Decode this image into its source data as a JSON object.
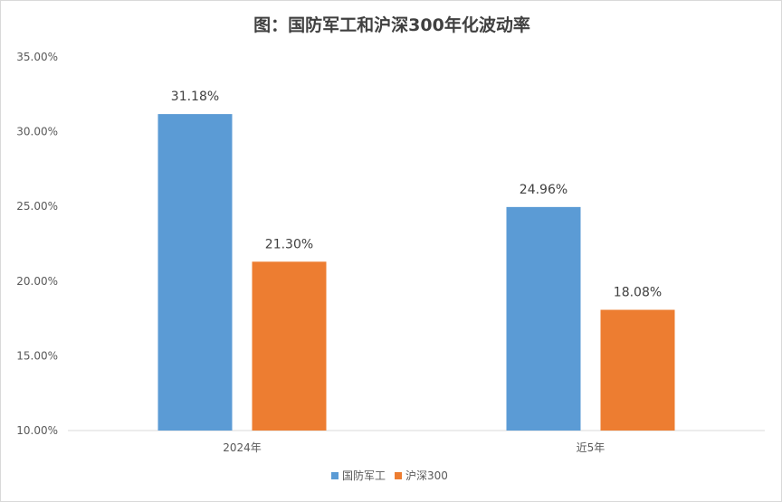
{
  "chart_data": {
    "type": "bar",
    "title": "图：国防军工和沪深300年化波动率",
    "categories": [
      "2024年",
      "近5年"
    ],
    "series": [
      {
        "name": "国防军工",
        "values": [
          31.18,
          24.96
        ],
        "labels": [
          "31.18%",
          "24.96%"
        ],
        "color": "#5b9bd5"
      },
      {
        "name": "沪深300",
        "values": [
          21.3,
          18.08
        ],
        "labels": [
          "21.30%",
          "18.08%"
        ],
        "color": "#ed7d31"
      }
    ],
    "ylim": [
      10,
      35
    ],
    "yticks": [
      10,
      15,
      20,
      25,
      30,
      35
    ],
    "ytick_labels": [
      "10.00%",
      "15.00%",
      "20.00%",
      "25.00%",
      "30.00%",
      "35.00%"
    ],
    "xlabel": "",
    "ylabel": "",
    "grid": false,
    "legend": "bottom"
  }
}
